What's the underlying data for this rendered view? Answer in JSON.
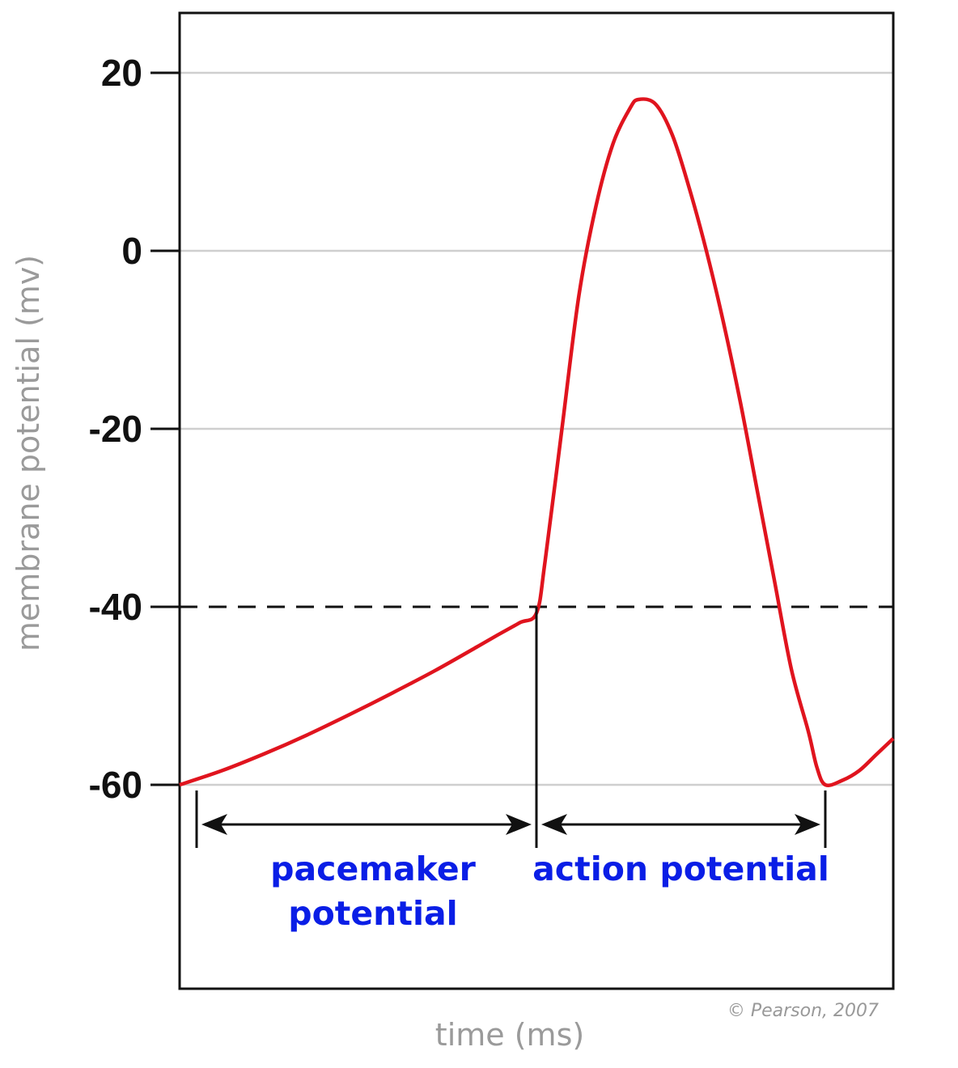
{
  "chart_data": {
    "type": "line",
    "xlabel": "time (ms)",
    "ylabel": "membrane potential (mv)",
    "ylim": [
      -60,
      20
    ],
    "y_ticks": [
      20,
      0,
      -20,
      -40,
      -60
    ],
    "grid": true,
    "threshold": {
      "y": -40,
      "style": "dashed"
    },
    "series": [
      {
        "color": "#e0141e",
        "points": [
          [
            0,
            -60
          ],
          [
            5,
            -58.4
          ],
          [
            10,
            -56.5
          ],
          [
            15,
            -54.4
          ],
          [
            20,
            -52.1
          ],
          [
            25,
            -49.7
          ],
          [
            30,
            -47.2
          ],
          [
            35,
            -44.5
          ],
          [
            37,
            -43.4
          ],
          [
            40,
            -41.8
          ],
          [
            42,
            -40.7
          ],
          [
            43,
            -35
          ],
          [
            45,
            -20
          ],
          [
            47,
            -5
          ],
          [
            49,
            5
          ],
          [
            51,
            12
          ],
          [
            53,
            16
          ],
          [
            54,
            17
          ],
          [
            56,
            16.5
          ],
          [
            58,
            13
          ],
          [
            60,
            7
          ],
          [
            62,
            0
          ],
          [
            64,
            -8
          ],
          [
            66,
            -17
          ],
          [
            68,
            -27
          ],
          [
            70,
            -37
          ],
          [
            72,
            -47
          ],
          [
            74,
            -54
          ],
          [
            75,
            -58
          ],
          [
            76,
            -60
          ],
          [
            78,
            -59.5
          ],
          [
            80,
            -58.4
          ],
          [
            82,
            -56.6
          ],
          [
            84,
            -54.8
          ]
        ]
      }
    ],
    "annotations": [
      {
        "id": "pacemaker",
        "x_start": 2,
        "x_end": 42,
        "lines": [
          "pacemaker",
          "potential"
        ]
      },
      {
        "id": "action",
        "x_start": 42,
        "x_end": 76,
        "lines": [
          "action potential"
        ]
      }
    ],
    "copyright": "© Pearson, 2007"
  }
}
